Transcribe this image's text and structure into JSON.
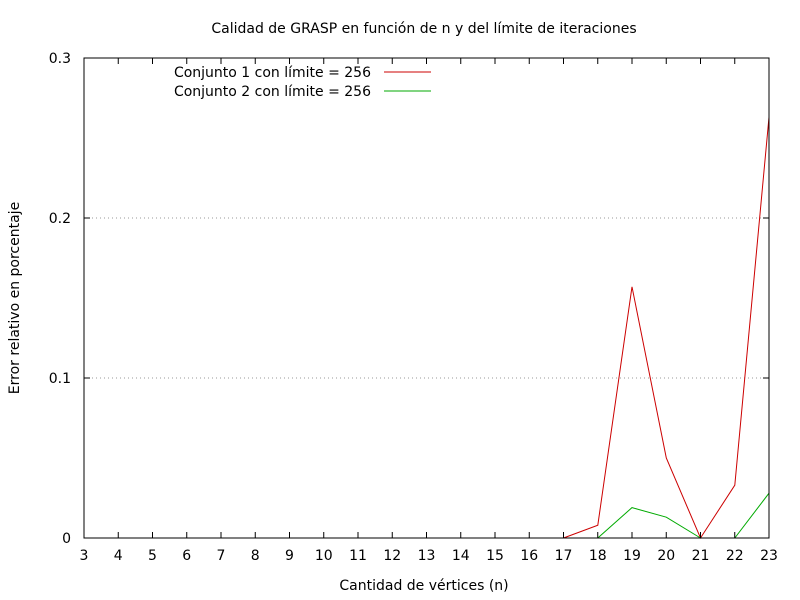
{
  "chart_data": {
    "type": "line",
    "title": "Calidad de GRASP en función de n y del límite de iteraciones",
    "xlabel": "Cantidad de vértices (n)",
    "ylabel": "Error relativo en porcentaje",
    "x_ticks": [
      "3",
      "4",
      "5",
      "6",
      "7",
      "8",
      "9",
      "10",
      "11",
      "12",
      "13",
      "14",
      "15",
      "16",
      "17",
      "18",
      "19",
      "20",
      "21",
      "22",
      "23"
    ],
    "y_ticks": [
      "0",
      "0.1",
      "0.2",
      "0.3"
    ],
    "xlim": [
      3,
      23
    ],
    "ylim": [
      0,
      0.3
    ],
    "grid": "horizontal dotted at 0.1 and 0.2",
    "legend_position": "top-left",
    "series": [
      {
        "name": "Conjunto 1 con límite = 256",
        "color": "#cc0000",
        "points": [
          [
            17,
            0
          ],
          [
            18,
            0.008
          ],
          [
            19,
            0.157
          ],
          [
            20,
            0.05
          ],
          [
            21,
            0
          ],
          [
            22,
            0.033
          ],
          [
            23,
            0.263
          ]
        ]
      },
      {
        "name": "Conjunto 2 con límite = 256",
        "color": "#00aa00",
        "segments": [
          [
            [
              18,
              0
            ],
            [
              19,
              0.019
            ],
            [
              20,
              0.013
            ],
            [
              21,
              0
            ]
          ],
          [
            [
              22,
              0
            ],
            [
              23,
              0.028
            ]
          ]
        ]
      }
    ]
  }
}
